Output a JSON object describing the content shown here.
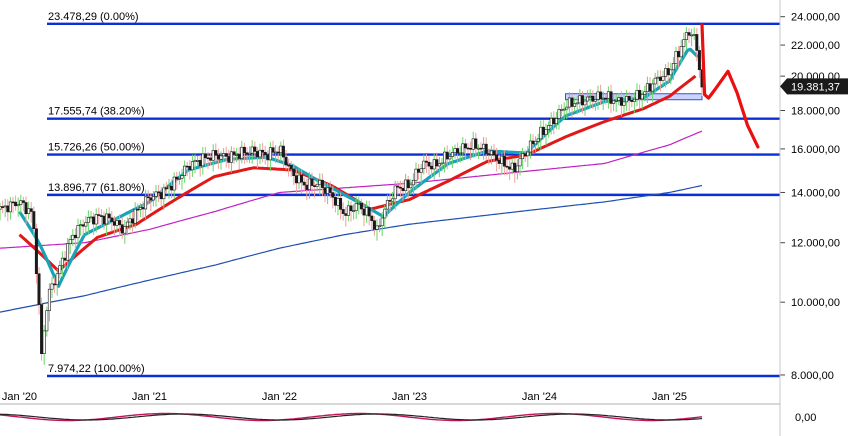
{
  "chart_data": {
    "type": "candlestick",
    "title": "",
    "x_ticks": [
      "Jan '20",
      "Jan '21",
      "Jan '22",
      "Jan '23",
      "Jan '24",
      "Jan '25"
    ],
    "y_ticks": [
      "24.000,00",
      "22.000,00",
      "20.000,00",
      "18.000,00",
      "16.000,00",
      "14.000,00",
      "12.000,00",
      "10.000,00",
      "8.000,00"
    ],
    "y_tick_values": [
      24000,
      22000,
      20000,
      18000,
      16000,
      14000,
      12000,
      10000,
      8000
    ],
    "ylim": [
      7500,
      24800
    ],
    "y_scale": "log",
    "last_price": {
      "label": "19.381,37",
      "value": 19381.37
    },
    "oscillator_tick": "0,00",
    "fibonacci_levels": [
      {
        "label": "23.478,29 (0.00%)",
        "value": 23478.29
      },
      {
        "label": "17.555,74 (38.20%)",
        "value": 17555.74
      },
      {
        "label": "15.726,26 (50.00%)",
        "value": 15726.26
      },
      {
        "label": "13.896,77 (61.80%)",
        "value": 13896.77
      },
      {
        "label": "7.974,22 (100.00%)",
        "value": 7974.22
      }
    ],
    "series": [
      {
        "kind": "price",
        "x": [
          2019.85,
          2020.0,
          2020.1,
          2020.17,
          2020.22,
          2020.3,
          2020.4,
          2020.5,
          2020.6,
          2020.7,
          2020.8,
          2020.9,
          2021.0,
          2021.1,
          2021.2,
          2021.3,
          2021.4,
          2021.5,
          2021.6,
          2021.7,
          2021.8,
          2021.9,
          2022.0,
          2022.1,
          2022.2,
          2022.3,
          2022.4,
          2022.5,
          2022.6,
          2022.7,
          2022.75,
          2022.8,
          2022.9,
          2023.0,
          2023.1,
          2023.2,
          2023.3,
          2023.4,
          2023.5,
          2023.6,
          2023.7,
          2023.8,
          2023.9,
          2024.0,
          2024.1,
          2024.2,
          2024.3,
          2024.4,
          2024.5,
          2024.6,
          2024.7,
          2024.8,
          2024.9,
          2025.0,
          2025.1,
          2025.15,
          2025.2,
          2025.25
        ],
        "y": [
          13300,
          13600,
          13100,
          8500,
          10200,
          11000,
          12200,
          12800,
          13000,
          12900,
          12500,
          13200,
          13800,
          14000,
          14500,
          15200,
          15500,
          15700,
          15600,
          15800,
          15900,
          15700,
          16000,
          14800,
          14300,
          14400,
          13900,
          13100,
          13500,
          13000,
          12400,
          13200,
          14200,
          14300,
          15300,
          15200,
          15700,
          16000,
          16200,
          15900,
          15400,
          15000,
          15900,
          16700,
          17400,
          18300,
          18500,
          18700,
          18800,
          18500,
          18600,
          19000,
          19800,
          20300,
          22100,
          23000,
          22300,
          19381.37
        ]
      },
      {
        "kind": "projection",
        "x": [
          2025.25,
          2025.27,
          2025.3,
          2025.35,
          2025.45,
          2025.52,
          2025.6,
          2025.68
        ],
        "y": [
          23400,
          18900,
          18700,
          19200,
          20300,
          19000,
          17200,
          16100
        ]
      },
      {
        "kind": "moving-average-red",
        "x": [
          2020.0,
          2020.3,
          2020.6,
          2020.9,
          2021.2,
          2021.5,
          2021.8,
          2022.1,
          2022.4,
          2022.7,
          2023.0,
          2023.3,
          2023.6,
          2023.9,
          2024.2,
          2024.5,
          2024.8,
          2025.0,
          2025.2
        ],
        "y": [
          12300,
          11000,
          12200,
          12700,
          13700,
          14700,
          15100,
          15000,
          14300,
          13300,
          13700,
          14500,
          15400,
          15700,
          16600,
          17400,
          18100,
          18800,
          20000
        ]
      },
      {
        "kind": "moving-average-magenta",
        "x": [
          2019.85,
          2020.5,
          2021.0,
          2021.5,
          2022.0,
          2022.5,
          2023.0,
          2023.5,
          2024.0,
          2024.5,
          2025.0,
          2025.25
        ],
        "y": [
          11800,
          12000,
          12500,
          13200,
          14000,
          14200,
          14400,
          14700,
          15000,
          15300,
          16200,
          16900
        ]
      },
      {
        "kind": "moving-average-blue",
        "x": [
          2019.85,
          2020.5,
          2021.0,
          2021.5,
          2022.0,
          2022.5,
          2023.0,
          2023.5,
          2024.0,
          2024.5,
          2025.0,
          2025.25
        ],
        "y": [
          9700,
          10200,
          10700,
          11200,
          11800,
          12300,
          12700,
          13000,
          13300,
          13600,
          14000,
          14300
        ]
      },
      {
        "kind": "moving-average-cyan",
        "x": [
          2020.0,
          2020.15,
          2020.3,
          2020.5,
          2020.7,
          2021.0,
          2021.3,
          2021.6,
          2021.9,
          2022.1,
          2022.3,
          2022.6,
          2022.8,
          2023.0,
          2023.3,
          2023.6,
          2023.9,
          2024.2,
          2024.5,
          2024.8,
          2025.0,
          2025.15,
          2025.22
        ],
        "y": [
          13200,
          12000,
          10500,
          12300,
          12800,
          13600,
          15000,
          15500,
          15600,
          15200,
          14500,
          13600,
          13000,
          14000,
          15300,
          15900,
          15800,
          17700,
          18500,
          18700,
          19700,
          21800,
          21200
        ]
      }
    ],
    "highlight_zone": {
      "x_start": 2024.2,
      "x_end": 2025.25,
      "y_low": 18700,
      "y_high": 18950
    }
  }
}
